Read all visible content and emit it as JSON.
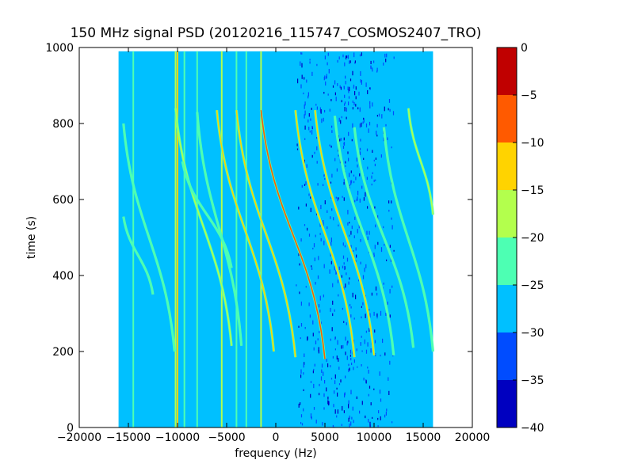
{
  "chart_data": {
    "type": "heatmap",
    "title": "150 MHz signal PSD (20120216_115747_COSMOS2407_TRO)",
    "xlabel": "frequency (Hz)",
    "ylabel": "time (s)",
    "xlim": [
      -20000,
      20000
    ],
    "ylim": [
      0,
      1000
    ],
    "x_ticks": [
      -20000,
      -15000,
      -10000,
      -5000,
      0,
      5000,
      10000,
      15000,
      20000
    ],
    "x_tick_labels": [
      "−20000",
      "−15000",
      "−10000",
      "−5000",
      "0",
      "5000",
      "10000",
      "15000",
      "20000"
    ],
    "y_ticks": [
      0,
      200,
      400,
      600,
      800,
      1000
    ],
    "y_tick_labels": [
      "0",
      "200",
      "400",
      "600",
      "800",
      "1000"
    ],
    "data_extent": {
      "x": [
        -16000,
        16000
      ],
      "y": [
        0,
        990
      ]
    },
    "background_level": -27.5,
    "colorbar": {
      "range": [
        -40,
        0
      ],
      "ticks": [
        0,
        -5,
        -10,
        -15,
        -20,
        -25,
        -30,
        -35,
        -40
      ],
      "tick_labels": [
        "0",
        "−5",
        "−10",
        "−15",
        "−20",
        "−25",
        "−30",
        "−35",
        "−40"
      ],
      "bins": [
        {
          "from": -40,
          "to": -35,
          "color": "#0000c0"
        },
        {
          "from": -35,
          "to": -30,
          "color": "#004cff"
        },
        {
          "from": -30,
          "to": -25,
          "color": "#00c0ff"
        },
        {
          "from": -25,
          "to": -20,
          "color": "#4dffb3"
        },
        {
          "from": -20,
          "to": -15,
          "color": "#b3ff4d"
        },
        {
          "from": -15,
          "to": -10,
          "color": "#ffd300"
        },
        {
          "from": -10,
          "to": -5,
          "color": "#ff5a00"
        },
        {
          "from": -5,
          "to": 0,
          "color": "#c00000"
        }
      ]
    },
    "constant_lines": [
      {
        "x": -14500,
        "level": -22
      },
      {
        "x": -10200,
        "level": -18
      },
      {
        "x": -10000,
        "level": -13
      },
      {
        "x": -9300,
        "level": -22
      },
      {
        "x": -8000,
        "level": -22
      },
      {
        "x": -5500,
        "level": -20
      },
      {
        "x": -4000,
        "level": -23
      },
      {
        "x": -3000,
        "level": -22
      },
      {
        "x": -1500,
        "level": -20
      }
    ],
    "doppler_traces": [
      {
        "x_top": -15500,
        "y_top": 800,
        "x_bottom": -10300,
        "y_bottom": 200,
        "level": -22
      },
      {
        "x_top": -15500,
        "y_top": 555,
        "x_bottom": -12500,
        "y_bottom": 350,
        "level": -22
      },
      {
        "x_top": -10200,
        "y_top": 840,
        "x_bottom": -4500,
        "y_bottom": 215,
        "level": -18
      },
      {
        "x_top": -9500,
        "y_top": 700,
        "x_bottom": -4500,
        "y_bottom": 420,
        "level": -22
      },
      {
        "x_top": -8000,
        "y_top": 830,
        "x_bottom": -3500,
        "y_bottom": 215,
        "level": -22
      },
      {
        "x_top": -6000,
        "y_top": 835,
        "x_bottom": -200,
        "y_bottom": 200,
        "level": -14
      },
      {
        "x_top": -4000,
        "y_top": 835,
        "x_bottom": 2000,
        "y_bottom": 185,
        "level": -14
      },
      {
        "x_top": -1500,
        "y_top": 835,
        "x_bottom": 5000,
        "y_bottom": 180,
        "level": -10
      },
      {
        "x_top": 2000,
        "y_top": 835,
        "x_bottom": 8000,
        "y_bottom": 185,
        "level": -14
      },
      {
        "x_top": 4000,
        "y_top": 835,
        "x_bottom": 10000,
        "y_bottom": 190,
        "level": -14
      },
      {
        "x_top": 6000,
        "y_top": 820,
        "x_bottom": 12000,
        "y_bottom": 190,
        "level": -22
      },
      {
        "x_top": 8000,
        "y_top": 790,
        "x_bottom": 14000,
        "y_bottom": 210,
        "level": -22
      },
      {
        "x_top": 11000,
        "y_top": 790,
        "x_bottom": 16000,
        "y_bottom": 200,
        "level": -22
      },
      {
        "x_top": 13500,
        "y_top": 840,
        "x_bottom": 16000,
        "y_bottom": 560,
        "level": -20
      }
    ],
    "low_power_band": {
      "x": [
        2000,
        12000
      ],
      "level": -32
    }
  }
}
